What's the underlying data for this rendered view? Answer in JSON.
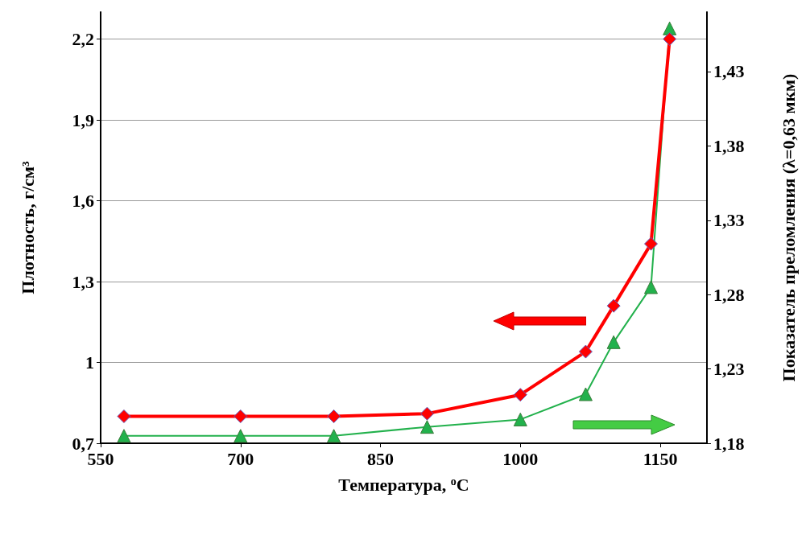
{
  "chart_data": {
    "type": "line",
    "xlabel": "Температура, $^{o}$C",
    "ylabel": "Плотность, г/см³",
    "y2label": "Показатель преломления (λ=0,63 мкм)",
    "xlim": [
      550,
      1200
    ],
    "xticks": [
      550,
      700,
      850,
      1000,
      1150
    ],
    "ylim": [
      0.7,
      2.3
    ],
    "yticks": [
      {
        "value": 0.7,
        "label": "0,7"
      },
      1,
      {
        "value": 1.3,
        "label": "1,3"
      },
      {
        "value": 1.6,
        "label": "1,6"
      },
      {
        "value": 1.9,
        "label": "1,9"
      },
      {
        "value": 2.2,
        "label": "2,2"
      }
    ],
    "y2lim": [
      1.18,
      1.47
    ],
    "y2ticks": [
      {
        "value": 1.18,
        "label": "1,18"
      },
      {
        "value": 1.23,
        "label": "1,23"
      },
      {
        "value": 1.28,
        "label": "1,28"
      },
      {
        "value": 1.33,
        "label": "1,33"
      },
      {
        "value": 1.38,
        "label": "1,38"
      },
      {
        "value": 1.43,
        "label": "1,43"
      }
    ],
    "grid": "y",
    "series": [
      {
        "color": "#ff0000",
        "marker": "diamond",
        "x": [
          575,
          700,
          800,
          900,
          1000,
          1070,
          1100,
          1140,
          1160
        ],
        "values": [
          0.8,
          0.8,
          0.8,
          0.81,
          0.88,
          1.04,
          1.21,
          1.44,
          2.2
        ]
      },
      {
        "color": "#22b14c",
        "marker": "triangle",
        "axis": "y2",
        "x": [
          575,
          700,
          800,
          900,
          1000,
          1070,
          1100,
          1140,
          1160
        ],
        "values": [
          1.185,
          1.185,
          1.185,
          1.191,
          1.196,
          1.213,
          1.248,
          1.285,
          1.459
        ]
      }
    ]
  }
}
